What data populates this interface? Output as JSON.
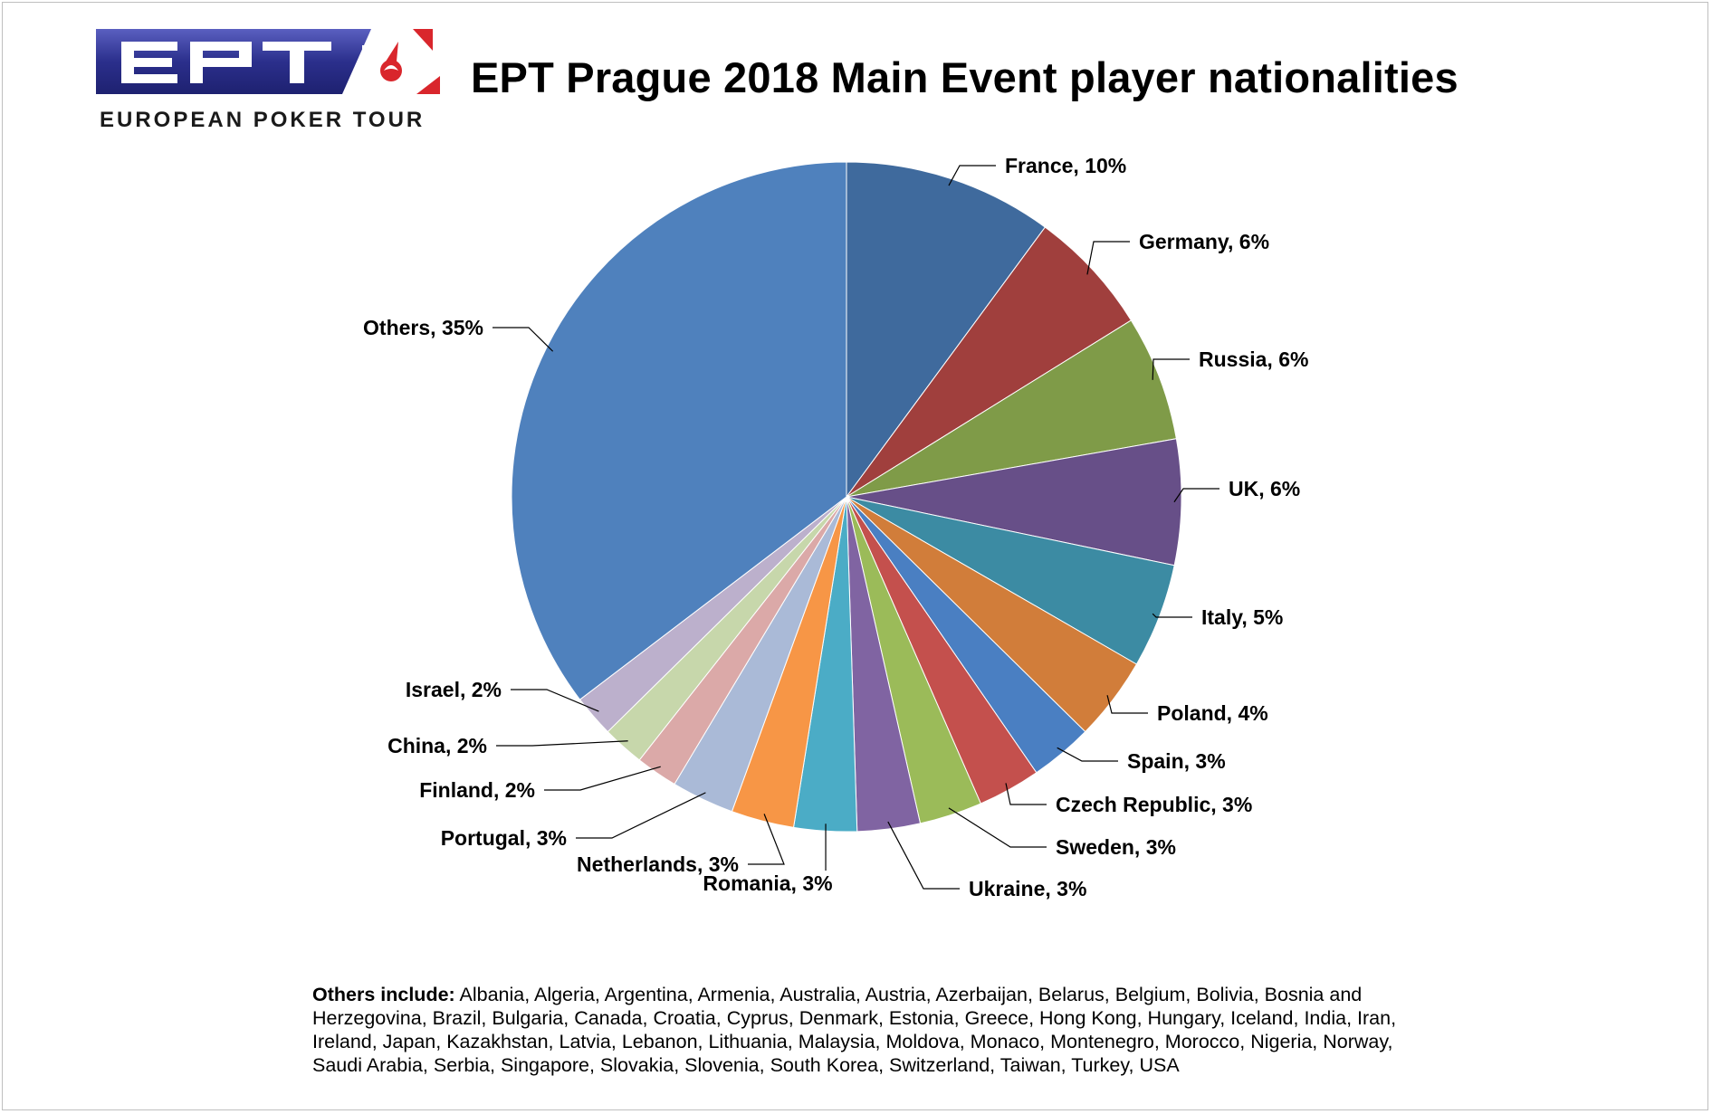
{
  "logo": {
    "wordmark": "EPT",
    "tagline": "EUROPEAN POKER TOUR",
    "colors": {
      "band": "#2b2f8c",
      "accent": "#d9262c"
    }
  },
  "chart_data": {
    "type": "pie",
    "title": "EPT Prague 2018 Main Event player nationalities",
    "start_angle": "12 o'clock",
    "direction": "clockwise",
    "slices": [
      {
        "label": "France, 10%",
        "name": "France",
        "value": 10,
        "color": "#3f6a9d"
      },
      {
        "label": "Germany, 6%",
        "name": "Germany",
        "value": 6,
        "color": "#a03f3d"
      },
      {
        "label": "Russia, 6%",
        "name": "Russia",
        "value": 6,
        "color": "#7f9b48"
      },
      {
        "label": "UK, 6%",
        "name": "UK",
        "value": 6,
        "color": "#674f88"
      },
      {
        "label": "Italy, 5%",
        "name": "Italy",
        "value": 5,
        "color": "#3c8ba3"
      },
      {
        "label": "Poland, 4%",
        "name": "Poland",
        "value": 4,
        "color": "#d17d3a"
      },
      {
        "label": "Spain, 3%",
        "name": "Spain",
        "value": 3,
        "color": "#4a7fc2"
      },
      {
        "label": "Czech Republic, 3%",
        "name": "Czech Republic",
        "value": 3,
        "color": "#c4504d"
      },
      {
        "label": "Sweden, 3%",
        "name": "Sweden",
        "value": 3,
        "color": "#9bbb59"
      },
      {
        "label": "Ukraine, 3%",
        "name": "Ukraine",
        "value": 3,
        "color": "#8064a2"
      },
      {
        "label": "Romania, 3%",
        "name": "Romania",
        "value": 3,
        "color": "#4bacc6"
      },
      {
        "label": "Netherlands, 3%",
        "name": "Netherlands",
        "value": 3,
        "color": "#f79646"
      },
      {
        "label": "Portugal, 3%",
        "name": "Portugal",
        "value": 3,
        "color": "#aabad7"
      },
      {
        "label": "Finland, 2%",
        "name": "Finland",
        "value": 2,
        "color": "#dba9a8"
      },
      {
        "label": "China, 2%",
        "name": "China",
        "value": 2,
        "color": "#c7d7ab"
      },
      {
        "label": "Israel, 2%",
        "name": "Israel",
        "value": 2,
        "color": "#bcb0cc"
      },
      {
        "label": "Others, 35%",
        "name": "Others",
        "value": 35,
        "color": "#4f81bd"
      }
    ]
  },
  "footnote": {
    "lead": "Others include:",
    "text": " Albania, Algeria, Argentina, Armenia, Australia, Austria, Azerbaijan, Belarus, Belgium, Bolivia, Bosnia and Herzegovina, Brazil, Bulgaria, Canada, Croatia, Cyprus, Denmark, Estonia, Greece, Hong Kong, Hungary, Iceland, India, Iran, Ireland, Japan, Kazakhstan, Latvia, Lebanon, Lithuania, Malaysia, Moldova, Monaco, Montenegro, Morocco, Nigeria, Norway, Saudi Arabia, Serbia, Singapore, Slovakia, Slovenia, South Korea, Switzerland, Taiwan, Turkey, USA"
  }
}
